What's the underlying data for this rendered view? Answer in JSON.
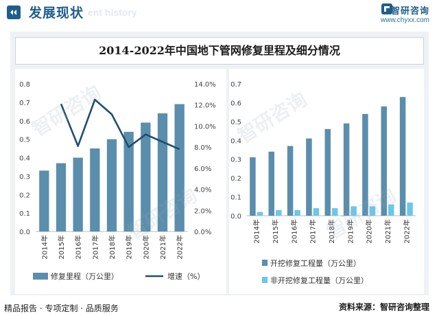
{
  "header": {
    "title": "发展现状",
    "subtitle": "ent history",
    "logo_name": "智研咨询",
    "logo_url": "www.chyxx.com"
  },
  "chart_title": "2014-2022年中国地下管网修复里程及细分情况",
  "colors": {
    "bar": "#5b8ead",
    "line": "#1f4e6e",
    "light_bar": "#6dc6ea",
    "panel": "#eef2f5"
  },
  "chart_data": [
    {
      "type": "bar",
      "categories": [
        "2014年",
        "2015年",
        "2016年",
        "2017年",
        "2018年",
        "2019年",
        "2020年",
        "2021年",
        "2022年"
      ],
      "series": [
        {
          "name": "修复里程（万公里）",
          "type": "bar",
          "axis": "left",
          "values": [
            0.33,
            0.37,
            0.4,
            0.45,
            0.5,
            0.54,
            0.59,
            0.64,
            0.69
          ]
        },
        {
          "name": "增速（%）",
          "type": "line",
          "axis": "right",
          "values": [
            null,
            12.1,
            8.1,
            12.5,
            11.1,
            8.0,
            9.2,
            8.5,
            7.8
          ]
        }
      ],
      "ylim_left": [
        0,
        0.8
      ],
      "yticks_left": [
        "0.0",
        "0.1",
        "0.2",
        "0.3",
        "0.4",
        "0.5",
        "0.6",
        "0.7",
        "0.8"
      ],
      "ylim_right": [
        0,
        14
      ],
      "yticks_right": [
        "0.0%",
        "2.0%",
        "4.0%",
        "6.0%",
        "8.0%",
        "10.0%",
        "12.0%",
        "14.0%"
      ],
      "legend": [
        {
          "label": "修复里程（万公里）",
          "kind": "bar"
        },
        {
          "label": "增速（%）",
          "kind": "line"
        }
      ],
      "legend_position": "bottom"
    },
    {
      "type": "bar",
      "categories": [
        "2014年",
        "2015年",
        "2016年",
        "2017年",
        "2018年",
        "2019年",
        "2020年",
        "2021年",
        "2022年"
      ],
      "series": [
        {
          "name": "开挖修复工程量（万公里）",
          "values": [
            0.31,
            0.34,
            0.37,
            0.41,
            0.46,
            0.49,
            0.54,
            0.58,
            0.63
          ]
        },
        {
          "name": "非开挖修复工程量（万公里）",
          "values": [
            0.02,
            0.03,
            0.03,
            0.04,
            0.04,
            0.05,
            0.05,
            0.06,
            0.07
          ]
        }
      ],
      "ylim": [
        0,
        0.7
      ],
      "yticks": [
        "0.0",
        "0.1",
        "0.2",
        "0.3",
        "0.4",
        "0.5",
        "0.6",
        "0.7"
      ],
      "legend_position": "bottom"
    }
  ],
  "watermark": "智研咨询",
  "footer": {
    "left": "精品报告 · 专项定制 · 品质服务",
    "right": "资料来源：智研咨询整理"
  }
}
